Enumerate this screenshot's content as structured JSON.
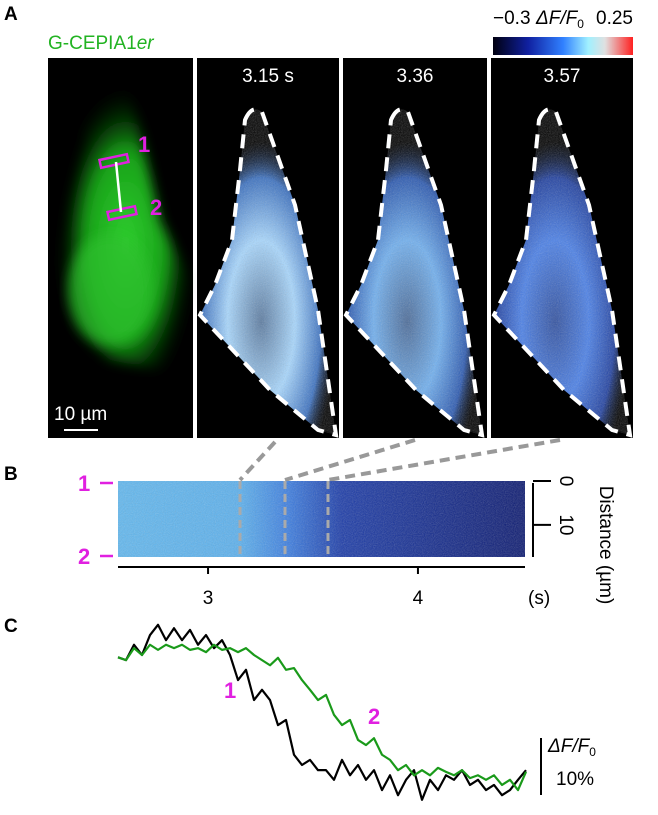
{
  "panel_a": {
    "label": "A",
    "title": {
      "main": "G-CEPIA1",
      "italic": "er"
    },
    "roi_labels": [
      "1",
      "2"
    ],
    "scalebar": "10 µm",
    "frames": [
      "3.15 s",
      "3.36",
      "3.57"
    ],
    "colorbar": {
      "label": {
        "main": "ΔF/F",
        "sub": "0"
      },
      "ticks": [
        {
          "value": -0.3,
          "label": "−0.3"
        },
        0.25
      ],
      "lim": [
        -0.3,
        0.25
      ]
    }
  },
  "panel_b": {
    "label": "B",
    "roi_labels": [
      "1",
      "2"
    ],
    "xlim": [
      2.571,
      4.51
    ],
    "xticks": [
      3,
      4
    ],
    "x_unit": "(s)",
    "ylim": [
      0,
      17.3
    ],
    "yticks": [
      0,
      10
    ],
    "ylabel": "Distance (µm)"
  },
  "chart_data": {
    "type": "line",
    "label": "C",
    "series": [
      {
        "name": "1",
        "color": "#000000",
        "values": [
          -0.4,
          -0.9,
          1.8,
          0,
          3.5,
          5.3,
          2.6,
          4.7,
          2.6,
          4.4,
          1.8,
          3.5,
          1.2,
          2.6,
          0,
          -4.4,
          -2.6,
          -7.9,
          -6.1,
          -7.9,
          -12.3,
          -11.4,
          -17.5,
          -19.3,
          -18.4,
          -20.2,
          -20.2,
          -21.9,
          -18.4,
          -21.1,
          -19.3,
          -21.9,
          -20.2,
          -23.7,
          -21.1,
          -24.6,
          -21.9,
          -20.2,
          -25.4,
          -21.9,
          -23.7,
          -21.1,
          -21.9,
          -20.2,
          -22.8,
          -21.9,
          -23.7,
          -22.8,
          -24.6,
          -23.7,
          -21.9,
          -20.2
        ]
      },
      {
        "name": "2",
        "color": "#1a9a1a",
        "values": [
          -0.4,
          -0.9,
          1.2,
          0,
          1.8,
          0.9,
          1.8,
          1.2,
          1.8,
          0.9,
          1.2,
          0.5,
          1.8,
          0.9,
          1.2,
          0.5,
          1.2,
          0,
          -0.9,
          -1.8,
          -0.5,
          -2.6,
          -2.3,
          -4.4,
          -6.1,
          -7.9,
          -7.0,
          -10.5,
          -12.3,
          -11.4,
          -14.9,
          -15.8,
          -14.6,
          -17.5,
          -18.4,
          -20.2,
          -19.3,
          -21.1,
          -20.2,
          -21.1,
          -19.8,
          -20.5,
          -21.1,
          -20.2,
          -21.6,
          -21.1,
          -21.9,
          -21.1,
          -22.8,
          -21.9,
          -23.7,
          -20.5
        ]
      }
    ],
    "scalebar": {
      "value": 10,
      "label": "10%",
      "ylabel": {
        "main": "ΔF/F",
        "sub": "0"
      }
    }
  }
}
